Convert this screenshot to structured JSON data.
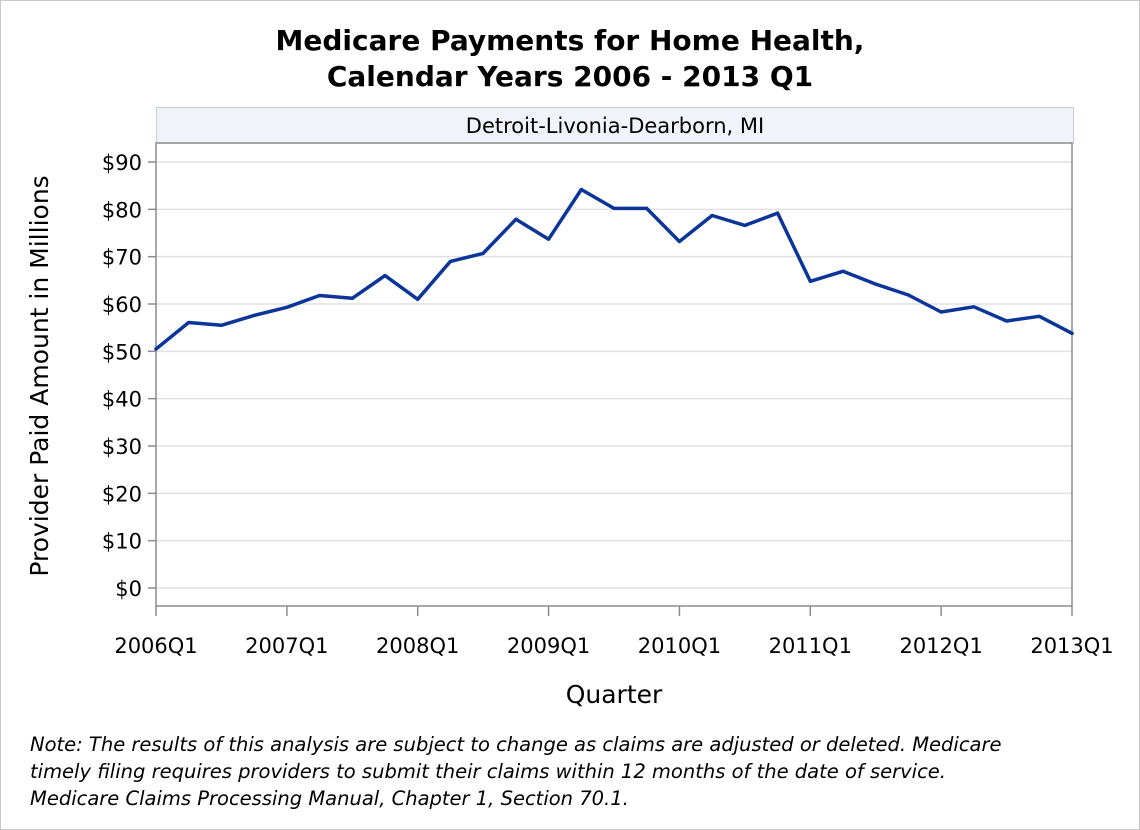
{
  "chart_data": {
    "type": "line",
    "title_lines": [
      "Medicare Payments for Home Health,",
      "Calendar Years 2006 - 2013 Q1"
    ],
    "facet_label": "Detroit-Livonia-Dearborn, MI",
    "xlabel": "Quarter",
    "ylabel": "Provider Paid Amount in Millions",
    "ylim": [
      0,
      93
    ],
    "y_ticks": [
      {
        "value": 0,
        "label": "$0"
      },
      {
        "value": 10,
        "label": "$10"
      },
      {
        "value": 20,
        "label": "$20"
      },
      {
        "value": 30,
        "label": "$30"
      },
      {
        "value": 40,
        "label": "$40"
      },
      {
        "value": 50,
        "label": "$50"
      },
      {
        "value": 60,
        "label": "$60"
      },
      {
        "value": 70,
        "label": "$70"
      },
      {
        "value": 80,
        "label": "$80"
      },
      {
        "value": 90,
        "label": "$90"
      }
    ],
    "x_ticks": [
      "2006Q1",
      "2007Q1",
      "2008Q1",
      "2009Q1",
      "2010Q1",
      "2011Q1",
      "2012Q1",
      "2013Q1"
    ],
    "x": [
      "2006Q1",
      "2006Q2",
      "2006Q3",
      "2006Q4",
      "2007Q1",
      "2007Q2",
      "2007Q3",
      "2007Q4",
      "2008Q1",
      "2008Q2",
      "2008Q3",
      "2008Q4",
      "2009Q1",
      "2009Q2",
      "2009Q3",
      "2009Q4",
      "2010Q1",
      "2010Q2",
      "2010Q3",
      "2010Q4",
      "2011Q1",
      "2011Q2",
      "2011Q3",
      "2011Q4",
      "2012Q1",
      "2012Q2",
      "2012Q3",
      "2012Q4",
      "2013Q1"
    ],
    "series": [
      {
        "values": [
          50.5,
          56.1,
          55.5,
          57.6,
          59.3,
          61.8,
          61.2,
          66.0,
          61.0,
          69.0,
          70.7,
          77.9,
          73.7,
          84.2,
          80.2,
          80.2,
          73.2,
          78.7,
          76.6,
          79.2,
          64.8,
          66.9,
          64.2,
          61.9,
          58.3,
          59.4,
          56.4,
          57.4,
          53.8
        ],
        "color": "#0b3598"
      }
    ],
    "grid": true,
    "colors": {
      "line": "#0b3598",
      "grid": "#e1e1e1",
      "axis": "#8c8c8c",
      "facet_bg": "#f0f3f9"
    }
  },
  "note_lines": [
    "Note: The results of this analysis are subject to change as claims are adjusted or deleted.  Medicare",
    "timely filing requires providers to submit their claims within 12 months of the date of service.",
    "Medicare Claims Processing Manual, Chapter 1, Section 70.1."
  ]
}
